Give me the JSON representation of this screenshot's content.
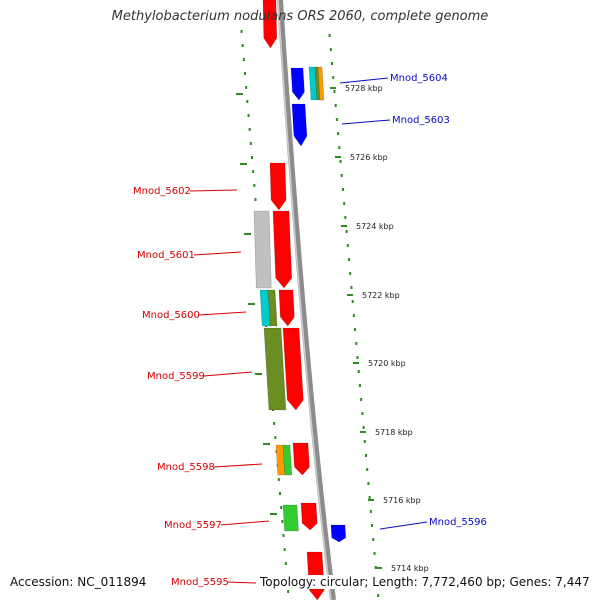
{
  "title": "Methylobacterium nodulans ORS 2060, complete genome",
  "footer": {
    "accession": "Accession: NC_011894",
    "topology": "Topology: circular; Length: 7,772,460 bp; Genes: 7,447"
  },
  "colors": {
    "backbone": "#8c8c8c",
    "ticks": "#2e8b22",
    "forward_label": "#0a0ac8",
    "reverse_label": "#d40000",
    "red_gene": "#ff0000",
    "blue_gene": "#0000ff",
    "olive_gene": "#6b8e23",
    "grey_gene": "#c0c0c0",
    "cyan_gene": "#00cccc",
    "orange_gene": "#ff9900",
    "green_gene": "#33cc33"
  },
  "ticks": [
    "5728 kbp",
    "5726 kbp",
    "5724 kbp",
    "5722 kbp",
    "5720 kbp",
    "5718 kbp",
    "5716 kbp",
    "5714 kbp"
  ],
  "gene_labels": {
    "forward": [
      "Mnod_5604",
      "Mnod_5603",
      "Mnod_5596"
    ],
    "reverse": [
      "Mnod_5602",
      "Mnod_5601",
      "Mnod_5600",
      "Mnod_5599",
      "Mnod_5598",
      "Mnod_5597",
      "Mnod_5595"
    ]
  }
}
